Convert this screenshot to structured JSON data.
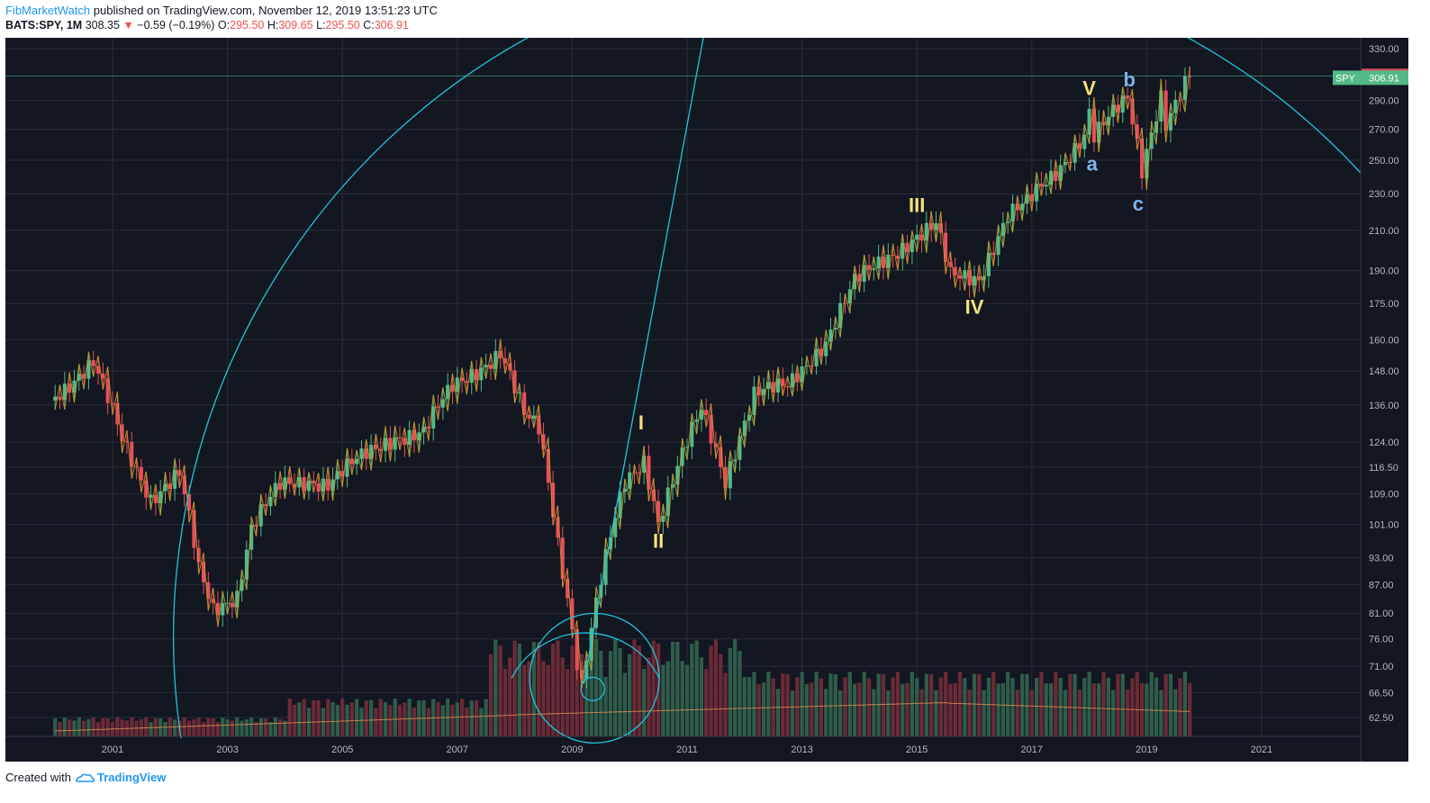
{
  "header": {
    "author": "FibMarketWatch",
    "published_text": "published on TradingView.com, November 12, 2019 13:51:23 UTC",
    "symbol": "BATS:SPY, 1M",
    "last": "308.35",
    "change_arrow": "▼",
    "change": "−0.59 (−0.19%)",
    "o_label": "O:",
    "o_value": "295.50",
    "h_label": "H:",
    "h_value": "309.65",
    "l_label": "L:",
    "l_value": "295.50",
    "c_label": "C:",
    "c_value": "306.91"
  },
  "footer": {
    "created_with": "Created with",
    "brand": "TradingView"
  },
  "colors": {
    "background": "#131722",
    "up": "#53b987",
    "down": "#eb4d5c",
    "wave_line": "#c9a227",
    "fib_arc": "#22c4d8",
    "wave_yellow": "#f5e27a",
    "wave_blue": "#7cb3ee",
    "price_label_bg": "#e04f5f",
    "spy_label_bg": "#53b987"
  },
  "chart_data": {
    "type": "candlestick",
    "symbol": "SPY",
    "interval": "1M",
    "x_tick_labels": [
      "2001",
      "2003",
      "2005",
      "2007",
      "2009",
      "2011",
      "2013",
      "2015",
      "2017",
      "2019",
      "2021"
    ],
    "y_tick_labels": [
      "330.00",
      "290.00",
      "270.00",
      "250.00",
      "230.00",
      "210.00",
      "190.00",
      "175.00",
      "160.00",
      "148.00",
      "136.00",
      "124.00",
      "116.50",
      "109.00",
      "101.00",
      "93.00",
      "87.00",
      "81.00",
      "76.00",
      "71.00",
      "66.50",
      "62.50"
    ],
    "y_scale": "log",
    "price_labels": {
      "last": "308.35",
      "spy_name": "SPY",
      "spy_close": "306.91"
    },
    "price_path_approx": [
      [
        "2000-01",
        140
      ],
      [
        "2000-09",
        150
      ],
      [
        "2001-03",
        125
      ],
      [
        "2001-09",
        108
      ],
      [
        "2002-03",
        114
      ],
      [
        "2002-07",
        90
      ],
      [
        "2002-10",
        82
      ],
      [
        "2003-03",
        85
      ],
      [
        "2003-06",
        100
      ],
      [
        "2003-12",
        111
      ],
      [
        "2004-06",
        113
      ],
      [
        "2004-10",
        112
      ],
      [
        "2005-06",
        120
      ],
      [
        "2005-12",
        126
      ],
      [
        "2006-06",
        127
      ],
      [
        "2006-12",
        142
      ],
      [
        "2007-06",
        150
      ],
      [
        "2007-10",
        155
      ],
      [
        "2008-03",
        132
      ],
      [
        "2008-06",
        128
      ],
      [
        "2008-10",
        97
      ],
      [
        "2009-02",
        72
      ],
      [
        "2009-03",
        68
      ],
      [
        "2009-12",
        112
      ],
      [
        "2010-04",
        119
      ],
      [
        "2010-07",
        102
      ],
      [
        "2011-04",
        134
      ],
      [
        "2011-09",
        113
      ],
      [
        "2012-03",
        140
      ],
      [
        "2012-10",
        142
      ],
      [
        "2013-06",
        160
      ],
      [
        "2013-12",
        184
      ],
      [
        "2014-06",
        195
      ],
      [
        "2014-12",
        206
      ],
      [
        "2015-05",
        212
      ],
      [
        "2015-08",
        187
      ],
      [
        "2016-02",
        187
      ],
      [
        "2016-08",
        218
      ],
      [
        "2016-12",
        224
      ],
      [
        "2017-06",
        243
      ],
      [
        "2017-12",
        267
      ],
      [
        "2018-01",
        282
      ],
      [
        "2018-02",
        265
      ],
      [
        "2018-09",
        291
      ],
      [
        "2018-12",
        245
      ],
      [
        "2019-04",
        295
      ],
      [
        "2019-05",
        275
      ],
      [
        "2019-10",
        306.91
      ]
    ],
    "volume_ma_visible": true,
    "elliott_wave_labels": [
      {
        "text": "I",
        "color": "yellow"
      },
      {
        "text": "II",
        "color": "yellow"
      },
      {
        "text": "III",
        "color": "yellow"
      },
      {
        "text": "IV",
        "color": "yellow"
      },
      {
        "text": "V",
        "color": "yellow"
      },
      {
        "text": "a",
        "color": "blue"
      },
      {
        "text": "b",
        "color": "blue"
      },
      {
        "text": "c",
        "color": "blue"
      }
    ],
    "grid": true,
    "axis_position": "right"
  }
}
